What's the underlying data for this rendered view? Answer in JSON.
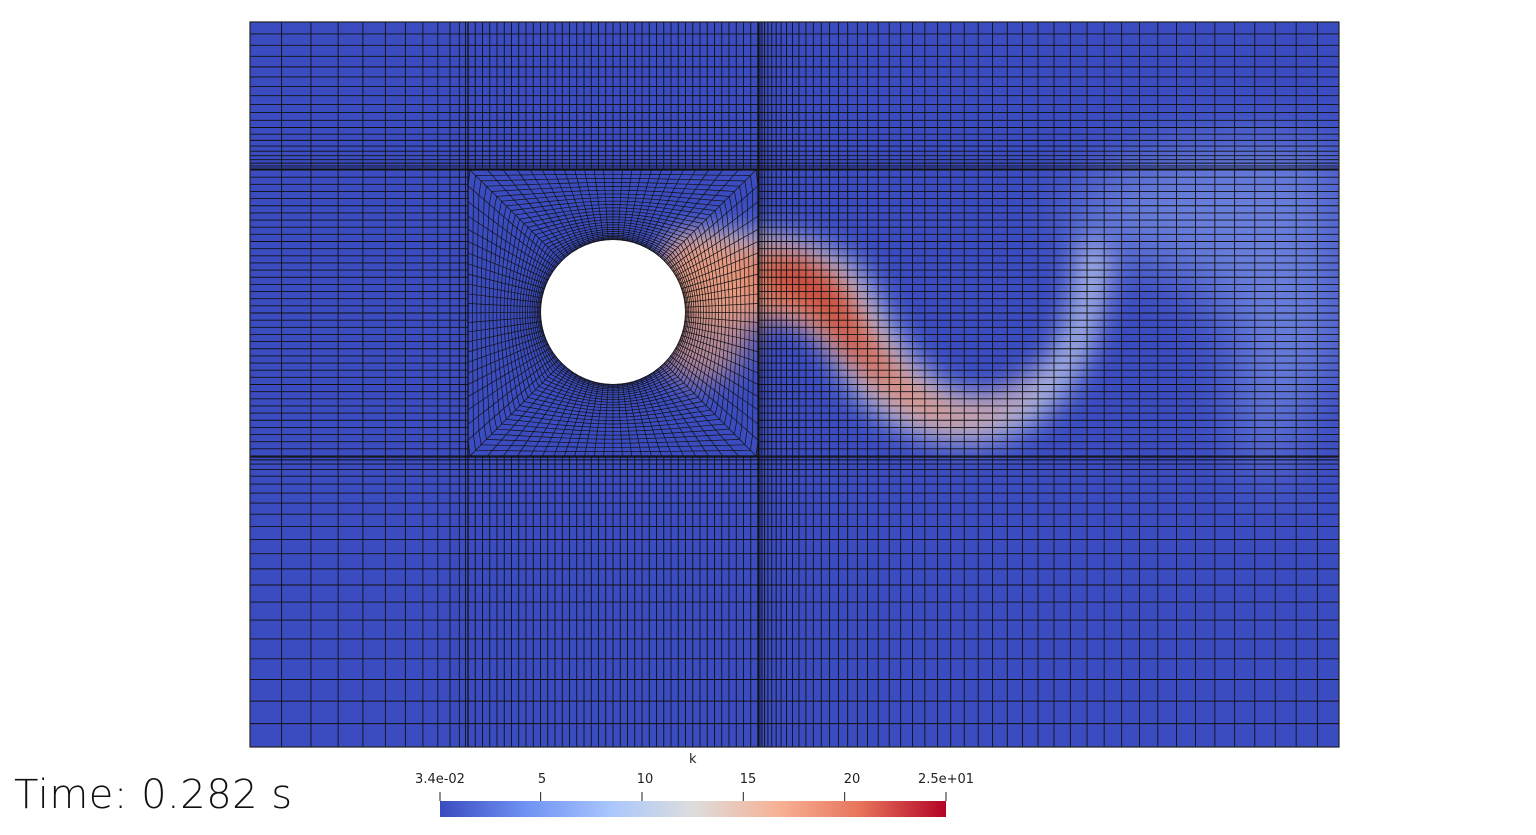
{
  "time_label": "Time: 0.282 s",
  "colorbar": {
    "title": "k",
    "ticks": [
      "3.4e-02",
      "5",
      "10",
      "15",
      "20",
      "2.5e+01"
    ],
    "tick_values": [
      0.034,
      5,
      10,
      15,
      20,
      25
    ],
    "range": [
      0.034,
      25
    ],
    "colormap": [
      "#3b4cc0",
      "#6f92f3",
      "#aac7fd",
      "#dddddd",
      "#f7b194",
      "#e7745b",
      "#b40426"
    ]
  },
  "field": {
    "name": "k",
    "background_color": "#3b4cc0",
    "obstacle_color": "#ffffff",
    "mesh_line_color": "#111111"
  }
}
